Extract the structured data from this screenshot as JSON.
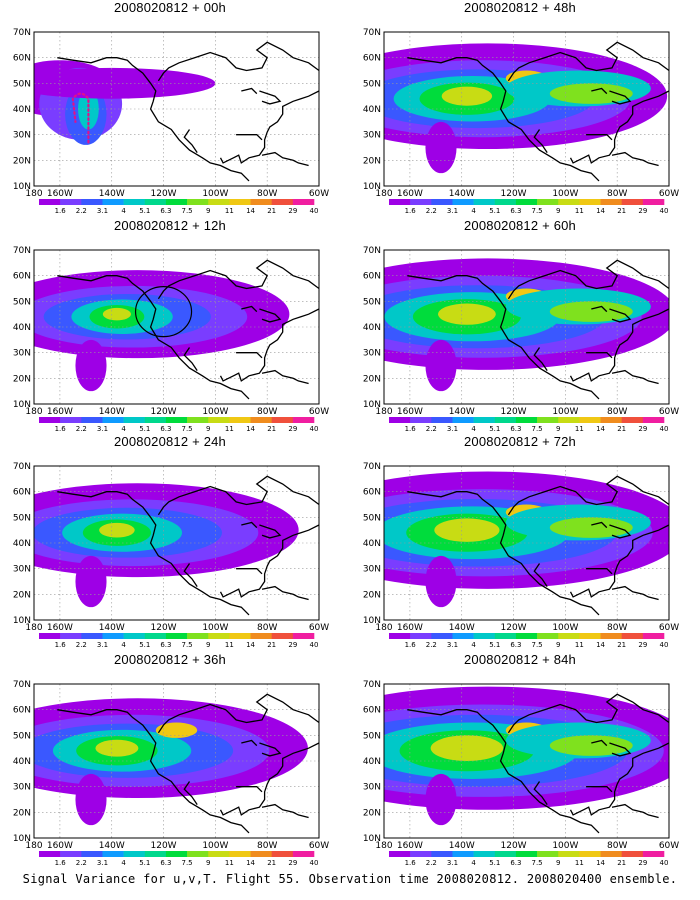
{
  "lat_labels": [
    "10N",
    "20N",
    "30N",
    "40N",
    "50N",
    "60N",
    "70N"
  ],
  "lon_labels": [
    "180",
    "160W",
    "140W",
    "120W",
    "100W",
    "80W",
    "60W"
  ],
  "colorbar": {
    "labels": [
      "1.6",
      "2.2",
      "3.1",
      "4",
      "5.1",
      "6.3",
      "7.5",
      "9",
      "11",
      "14",
      "21",
      "29",
      "40"
    ],
    "colors": [
      "#9e00e6",
      "#7a3dff",
      "#3a58ff",
      "#0f9bff",
      "#00c8c8",
      "#00d88c",
      "#00dc3c",
      "#7fe11e",
      "#c8dc14",
      "#f0c814",
      "#f08c1e",
      "#f0503c",
      "#f01ea0"
    ]
  },
  "panels": [
    {
      "title": "2008020812 + 00h",
      "lead": 0,
      "annotation": "dotted-track"
    },
    {
      "title": "2008020812 + 12h",
      "lead": 12,
      "annotation": "ellipse"
    },
    {
      "title": "2008020812 + 24h",
      "lead": 24,
      "annotation": ""
    },
    {
      "title": "2008020812 + 36h",
      "lead": 36,
      "annotation": ""
    },
    {
      "title": "2008020812 + 48h",
      "lead": 48,
      "annotation": ""
    },
    {
      "title": "2008020812 + 60h",
      "lead": 60,
      "annotation": ""
    },
    {
      "title": "2008020812 + 72h",
      "lead": 72,
      "annotation": ""
    },
    {
      "title": "2008020812 + 84h",
      "lead": 84,
      "annotation": ""
    }
  ],
  "caption": "Signal Variance for u,v,T. Flight 55. Observation time 2008020812. 2008020400 ensemble."
}
